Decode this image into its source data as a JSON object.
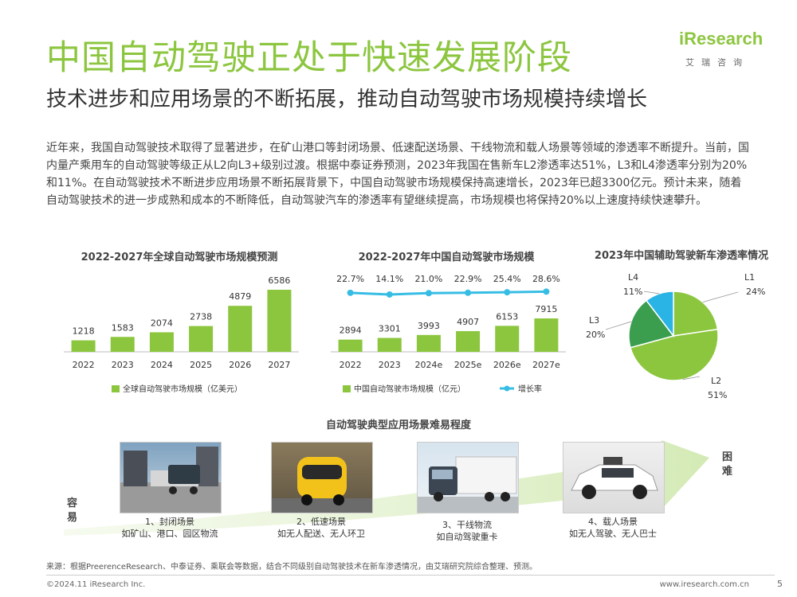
{
  "header": {
    "title": "中国自动驾驶正处于快速发展阶段",
    "subtitle": "技术进步和应用场景的不断拓展，推动自动驾驶市场规模持续增长",
    "logo_main": "iResearch",
    "logo_sub": "艾瑞咨询"
  },
  "intro": "近年来，我国自动驾驶技术取得了显著进步，在矿山港口等封闭场景、低速配送场景、干线物流和载人场景等领域的渗透率不断提升。当前，国内量产乘用车的自动驾驶等级正从L2向L3+级别过渡。根据中泰证券预测，2023年我国在售新车L2渗透率达51%，L3和L4渗透率分别为20%和11%。在自动驾驶技术不断进步应用场景不断拓展背景下，中国自动驾驶市场规模保持高速增长，2023年已超3300亿元。预计未来，随着自动驾驶技术的进一步成熟和成本的不断降低，自动驾驶汽车的渗透率有望继续提高，市场规模也将保持20%以上速度持续快速攀升。",
  "colors": {
    "accent": "#8cc63f",
    "line": "#37bde4",
    "pie_l3": "#3b9e4f",
    "pie_l4": "#2ab4e6"
  },
  "chart_data": [
    {
      "type": "bar",
      "title": "2022-2027年全球自动驾驶市场规模预测",
      "categories": [
        "2022",
        "2023",
        "2024",
        "2025",
        "2026",
        "2027"
      ],
      "series": [
        {
          "name": "全球自动驾驶市场规模（亿美元）",
          "values": [
            1218,
            1583,
            2074,
            2738,
            4879,
            6586
          ]
        }
      ],
      "ylim": [
        0,
        6586
      ]
    },
    {
      "type": "bar",
      "title": "2022-2027年中国自动驾驶市场规模",
      "categories": [
        "2022",
        "2023",
        "2024e",
        "2025e",
        "2026e",
        "2027e"
      ],
      "series": [
        {
          "name": "中国自动驾驶市场规模（亿元）",
          "values": [
            2894,
            3301,
            3993,
            4907,
            6153,
            7915
          ]
        },
        {
          "name": "增长率",
          "values": [
            "22.7%",
            "14.1%",
            "21.0%",
            "22.9%",
            "25.4%",
            "28.6%"
          ],
          "numeric": [
            22.7,
            14.1,
            21.0,
            22.9,
            25.4,
            28.6
          ]
        }
      ],
      "ylim": [
        0,
        7915
      ]
    },
    {
      "type": "pie",
      "title": "2023年中国辅助驾驶新车渗透率情况",
      "slices": [
        {
          "label": "L1",
          "value": 24,
          "value_label": "24%",
          "color": "#8cc63f"
        },
        {
          "label": "L2",
          "value": 51,
          "value_label": "51%",
          "color": "#8cc63f"
        },
        {
          "label": "L3",
          "value": 20,
          "value_label": "20%",
          "color": "#3b9e4f"
        },
        {
          "label": "L4",
          "value": 11,
          "value_label": "11%",
          "color": "#2ab4e6"
        }
      ]
    }
  ],
  "scenarios": {
    "title": "自动驾驶典型应用场景难易程度",
    "easy_label": "容易",
    "hard_label": "困难",
    "items": [
      {
        "line1": "1、封闭场景",
        "line2": "如矿山、港口、园区物流"
      },
      {
        "line1": "2、低速场景",
        "line2": "如无人配送、无人环卫"
      },
      {
        "line1": "3、干线物流",
        "line2": "如自动驾驶重卡"
      },
      {
        "line1": "4、载人场景",
        "line2": "如无人驾驶、无人巴士"
      }
    ]
  },
  "footer": {
    "source": "来源：根据PreerenceResearch、中泰证券、乘联会等数据，结合不同级别自动驾驶技术在新车渗透情况，由艾瑞研究院综合整理、预测。",
    "copyright": "©2024.11 iResearch Inc.",
    "website": "www.iresearch.com.cn",
    "page": "5"
  }
}
